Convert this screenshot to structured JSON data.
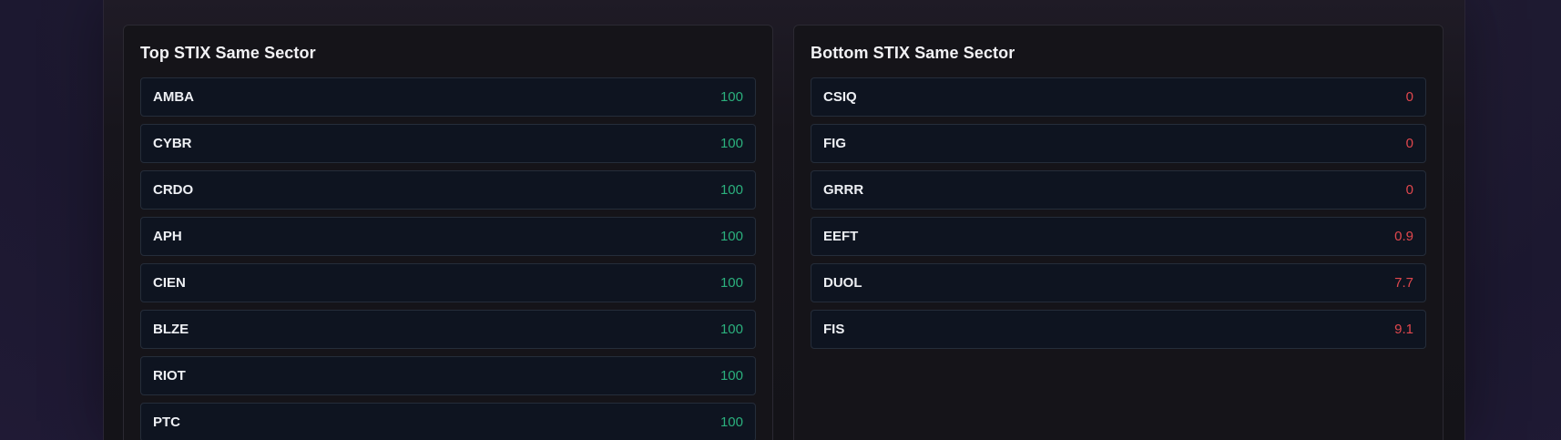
{
  "top_panel": {
    "title": "Top STIX Same Sector",
    "items": [
      {
        "symbol": "AMBA",
        "value": "100"
      },
      {
        "symbol": "CYBR",
        "value": "100"
      },
      {
        "symbol": "CRDO",
        "value": "100"
      },
      {
        "symbol": "APH",
        "value": "100"
      },
      {
        "symbol": "CIEN",
        "value": "100"
      },
      {
        "symbol": "BLZE",
        "value": "100"
      },
      {
        "symbol": "RIOT",
        "value": "100"
      },
      {
        "symbol": "PTC",
        "value": "100"
      }
    ]
  },
  "bottom_panel": {
    "title": "Bottom STIX Same Sector",
    "items": [
      {
        "symbol": "CSIQ",
        "value": "0"
      },
      {
        "symbol": "FIG",
        "value": "0"
      },
      {
        "symbol": "GRRR",
        "value": "0"
      },
      {
        "symbol": "EEFT",
        "value": "0.9"
      },
      {
        "symbol": "DUOL",
        "value": "7.7"
      },
      {
        "symbol": "FIS",
        "value": "9.1"
      }
    ]
  },
  "colors": {
    "positive": "#2bb07d",
    "negative": "#e0474d"
  }
}
